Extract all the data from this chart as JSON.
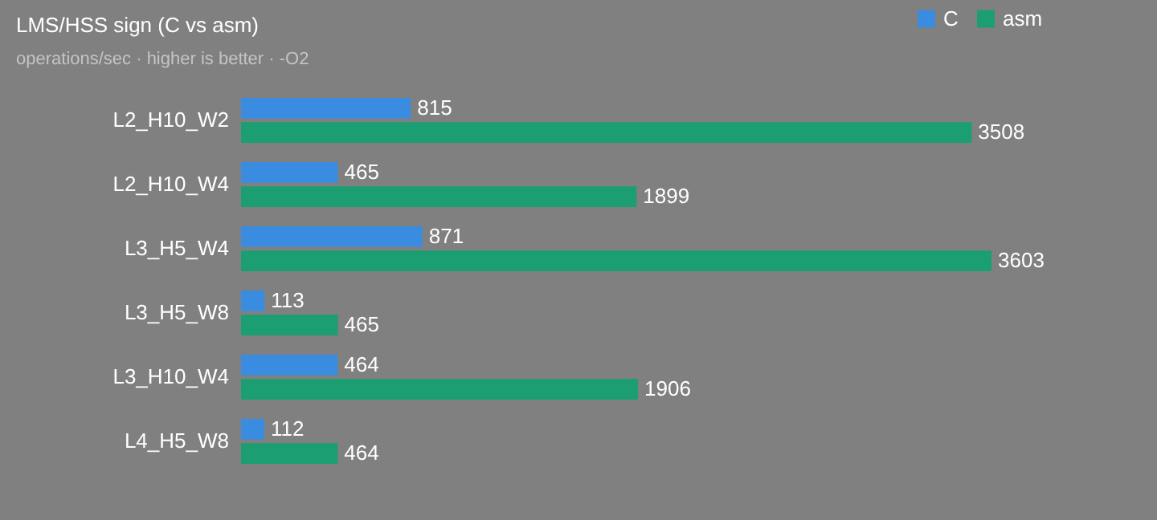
{
  "chart_data": {
    "type": "bar",
    "orientation": "horizontal",
    "title": "LMS/HSS sign (C vs asm)",
    "subtitle": "operations/sec · higher is better · -O2",
    "categories": [
      "L2_H10_W2",
      "L2_H10_W4",
      "L3_H5_W4",
      "L3_H5_W8",
      "L3_H10_W4",
      "L4_H5_W8"
    ],
    "series": [
      {
        "name": "C",
        "color": "#3a8ce0",
        "values": [
          815,
          465,
          871,
          113,
          464,
          112
        ]
      },
      {
        "name": "asm",
        "color": "#1a9e72",
        "values": [
          3508,
          1899,
          3603,
          465,
          1906,
          464
        ]
      }
    ],
    "data_labels": true,
    "legend": "top right"
  }
}
